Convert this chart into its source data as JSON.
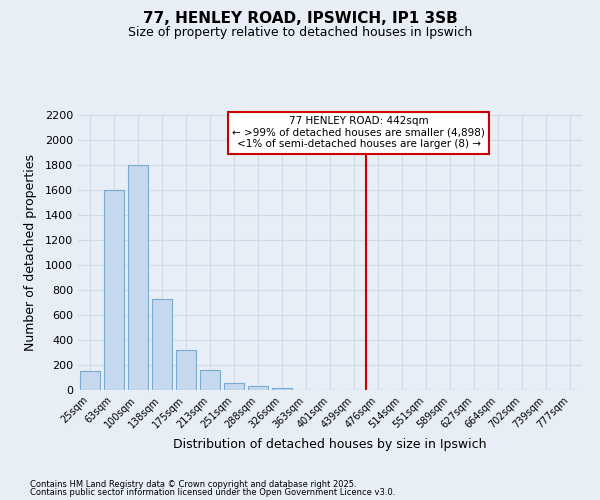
{
  "title": "77, HENLEY ROAD, IPSWICH, IP1 3SB",
  "subtitle": "Size of property relative to detached houses in Ipswich",
  "xlabel": "Distribution of detached houses by size in Ipswich",
  "ylabel": "Number of detached properties",
  "footer1": "Contains HM Land Registry data © Crown copyright and database right 2025.",
  "footer2": "Contains public sector information licensed under the Open Government Licence v3.0.",
  "annotation_title": "77 HENLEY ROAD: 442sqm",
  "annotation_line1": "← >99% of detached houses are smaller (4,898)",
  "annotation_line2": "<1% of semi-detached houses are larger (8) →",
  "bar_color": "#c5d8ee",
  "bar_edge_color": "#7aaad0",
  "annotation_line_color": "#cc0000",
  "annotation_box_edgecolor": "#cc0000",
  "categories": [
    "25sqm",
    "63sqm",
    "100sqm",
    "138sqm",
    "175sqm",
    "213sqm",
    "251sqm",
    "288sqm",
    "326sqm",
    "363sqm",
    "401sqm",
    "439sqm",
    "476sqm",
    "514sqm",
    "551sqm",
    "589sqm",
    "627sqm",
    "664sqm",
    "702sqm",
    "739sqm",
    "777sqm"
  ],
  "values": [
    155,
    1600,
    1800,
    730,
    320,
    160,
    55,
    30,
    15,
    0,
    0,
    0,
    0,
    0,
    0,
    0,
    0,
    0,
    0,
    0,
    0
  ],
  "ylim": [
    0,
    2200
  ],
  "yticks": [
    0,
    200,
    400,
    600,
    800,
    1000,
    1200,
    1400,
    1600,
    1800,
    2000,
    2200
  ],
  "vline_index": 11.5,
  "background_color": "#e8eef5",
  "grid_color": "#d0dae8",
  "figsize": [
    6.0,
    5.0
  ],
  "dpi": 100
}
